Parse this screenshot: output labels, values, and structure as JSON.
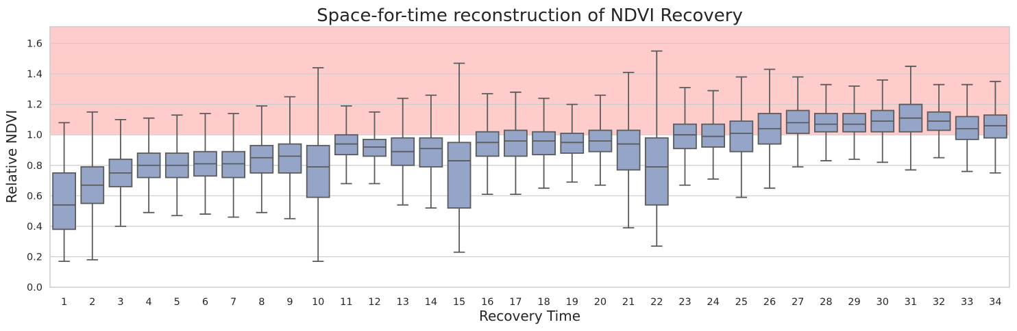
{
  "chart_data": {
    "type": "box",
    "title": "Space-for-time reconstruction of NDVI Recovery",
    "xlabel": "Recovery Time",
    "ylabel": "Relative NDVI",
    "ylim": [
      0,
      1.71
    ],
    "yticks": [
      0.0,
      0.2,
      0.4,
      0.6,
      0.8,
      1.0,
      1.2,
      1.4,
      1.6
    ],
    "ytick_labels": [
      "0.0",
      "0.2",
      "0.4",
      "0.6",
      "0.8",
      "1.0",
      "1.2",
      "1.4",
      "1.6"
    ],
    "grid": "horizontal",
    "shaded_region": {
      "y_from": 1.0,
      "y_to": 1.71,
      "color": "#ffcccc"
    },
    "colors": {
      "box_fill": "#95a5c8",
      "box_edge": "#5a5a5a",
      "grid": "#cccccc",
      "spine": "#cccccc"
    },
    "categories": [
      "1",
      "2",
      "3",
      "4",
      "5",
      "6",
      "7",
      "8",
      "9",
      "10",
      "11",
      "12",
      "13",
      "14",
      "15",
      "16",
      "17",
      "18",
      "19",
      "20",
      "21",
      "22",
      "23",
      "24",
      "25",
      "26",
      "27",
      "28",
      "29",
      "30",
      "31",
      "32",
      "33",
      "34"
    ],
    "boxes": [
      {
        "whislo": 0.17,
        "q1": 0.38,
        "med": 0.54,
        "q3": 0.75,
        "whishi": 1.08
      },
      {
        "whislo": 0.18,
        "q1": 0.55,
        "med": 0.67,
        "q3": 0.79,
        "whishi": 1.15
      },
      {
        "whislo": 0.4,
        "q1": 0.66,
        "med": 0.75,
        "q3": 0.84,
        "whishi": 1.1
      },
      {
        "whislo": 0.49,
        "q1": 0.72,
        "med": 0.8,
        "q3": 0.88,
        "whishi": 1.11
      },
      {
        "whislo": 0.47,
        "q1": 0.72,
        "med": 0.8,
        "q3": 0.88,
        "whishi": 1.13
      },
      {
        "whislo": 0.48,
        "q1": 0.73,
        "med": 0.81,
        "q3": 0.89,
        "whishi": 1.14
      },
      {
        "whislo": 0.46,
        "q1": 0.72,
        "med": 0.81,
        "q3": 0.89,
        "whishi": 1.14
      },
      {
        "whislo": 0.49,
        "q1": 0.75,
        "med": 0.85,
        "q3": 0.93,
        "whishi": 1.19
      },
      {
        "whislo": 0.45,
        "q1": 0.75,
        "med": 0.86,
        "q3": 0.94,
        "whishi": 1.25
      },
      {
        "whislo": 0.17,
        "q1": 0.59,
        "med": 0.79,
        "q3": 0.93,
        "whishi": 1.44
      },
      {
        "whislo": 0.68,
        "q1": 0.87,
        "med": 0.94,
        "q3": 1.0,
        "whishi": 1.19
      },
      {
        "whislo": 0.68,
        "q1": 0.86,
        "med": 0.92,
        "q3": 0.97,
        "whishi": 1.15
      },
      {
        "whislo": 0.54,
        "q1": 0.8,
        "med": 0.89,
        "q3": 0.98,
        "whishi": 1.24
      },
      {
        "whislo": 0.52,
        "q1": 0.79,
        "med": 0.91,
        "q3": 0.98,
        "whishi": 1.26
      },
      {
        "whislo": 0.23,
        "q1": 0.52,
        "med": 0.83,
        "q3": 0.95,
        "whishi": 1.47
      },
      {
        "whislo": 0.61,
        "q1": 0.86,
        "med": 0.95,
        "q3": 1.02,
        "whishi": 1.27
      },
      {
        "whislo": 0.61,
        "q1": 0.86,
        "med": 0.96,
        "q3": 1.03,
        "whishi": 1.28
      },
      {
        "whislo": 0.65,
        "q1": 0.87,
        "med": 0.96,
        "q3": 1.02,
        "whishi": 1.24
      },
      {
        "whislo": 0.69,
        "q1": 0.88,
        "med": 0.95,
        "q3": 1.01,
        "whishi": 1.2
      },
      {
        "whislo": 0.67,
        "q1": 0.89,
        "med": 0.96,
        "q3": 1.03,
        "whishi": 1.26
      },
      {
        "whislo": 0.39,
        "q1": 0.77,
        "med": 0.94,
        "q3": 1.03,
        "whishi": 1.41
      },
      {
        "whislo": 0.27,
        "q1": 0.54,
        "med": 0.79,
        "q3": 0.98,
        "whishi": 1.55
      },
      {
        "whislo": 0.67,
        "q1": 0.91,
        "med": 1.0,
        "q3": 1.07,
        "whishi": 1.31
      },
      {
        "whislo": 0.71,
        "q1": 0.92,
        "med": 0.99,
        "q3": 1.07,
        "whishi": 1.29
      },
      {
        "whislo": 0.59,
        "q1": 0.89,
        "med": 1.01,
        "q3": 1.09,
        "whishi": 1.38
      },
      {
        "whislo": 0.65,
        "q1": 0.94,
        "med": 1.04,
        "q3": 1.14,
        "whishi": 1.43
      },
      {
        "whislo": 0.79,
        "q1": 1.01,
        "med": 1.08,
        "q3": 1.16,
        "whishi": 1.38
      },
      {
        "whislo": 0.83,
        "q1": 1.02,
        "med": 1.07,
        "q3": 1.14,
        "whishi": 1.33
      },
      {
        "whislo": 0.84,
        "q1": 1.02,
        "med": 1.07,
        "q3": 1.14,
        "whishi": 1.32
      },
      {
        "whislo": 0.82,
        "q1": 1.02,
        "med": 1.09,
        "q3": 1.16,
        "whishi": 1.36
      },
      {
        "whislo": 0.77,
        "q1": 1.02,
        "med": 1.11,
        "q3": 1.2,
        "whishi": 1.45
      },
      {
        "whislo": 0.85,
        "q1": 1.03,
        "med": 1.09,
        "q3": 1.15,
        "whishi": 1.33
      },
      {
        "whislo": 0.76,
        "q1": 0.97,
        "med": 1.04,
        "q3": 1.12,
        "whishi": 1.33
      },
      {
        "whislo": 0.75,
        "q1": 0.98,
        "med": 1.06,
        "q3": 1.13,
        "whishi": 1.35
      }
    ]
  }
}
